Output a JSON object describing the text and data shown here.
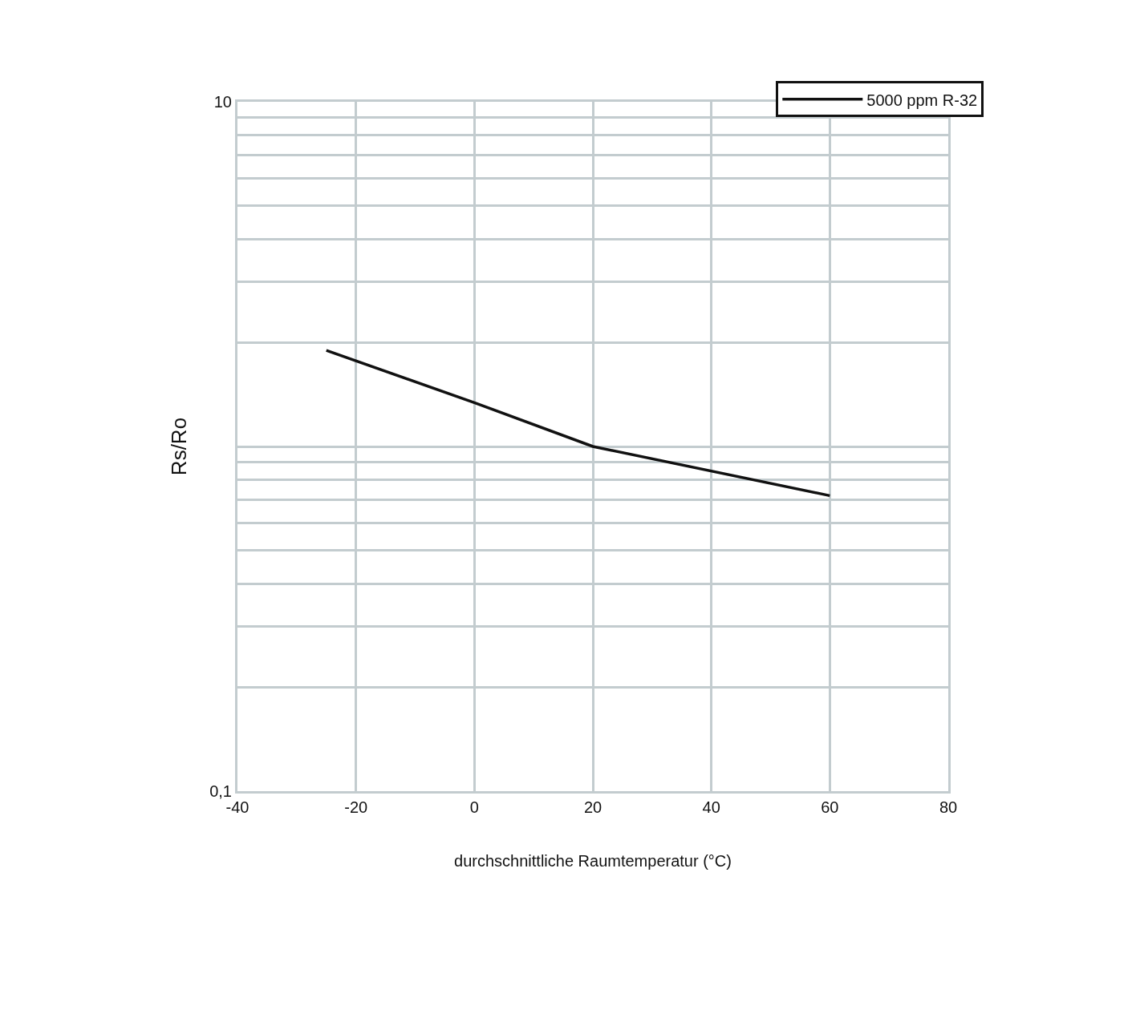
{
  "chart_data": {
    "type": "line",
    "xlabel": "durchschnittliche Raumtemperatur (°C)",
    "ylabel": "Rs/Ro",
    "x": [
      -25,
      0,
      20,
      60
    ],
    "series": [
      {
        "name": "5000 ppm R-32",
        "color": "#111111",
        "values": [
          1.9,
          1.34,
          1.0,
          0.72
        ]
      }
    ],
    "xlim": [
      -40,
      80
    ],
    "xticks": [
      -40,
      -20,
      0,
      20,
      40,
      60,
      80
    ],
    "ylim": [
      0.1,
      10
    ],
    "yticks": [
      {
        "value": 0.1,
        "label": "0,1"
      },
      {
        "value": 0.2,
        "label": null
      },
      {
        "value": 0.3,
        "label": null
      },
      {
        "value": 0.4,
        "label": null
      },
      {
        "value": 0.5,
        "label": null
      },
      {
        "value": 0.6,
        "label": null
      },
      {
        "value": 0.7,
        "label": null
      },
      {
        "value": 0.8,
        "label": null
      },
      {
        "value": 0.9,
        "label": null
      },
      {
        "value": 1,
        "label": null
      },
      {
        "value": 2,
        "label": null
      },
      {
        "value": 3,
        "label": null
      },
      {
        "value": 4,
        "label": null
      },
      {
        "value": 5,
        "label": null
      },
      {
        "value": 6,
        "label": null
      },
      {
        "value": 7,
        "label": null
      },
      {
        "value": 8,
        "label": null
      },
      {
        "value": 9,
        "label": null
      },
      {
        "value": 10,
        "label": "10"
      }
    ],
    "log": "y",
    "grid": true,
    "legend": "top right",
    "marker": "none",
    "line_style": "solid"
  }
}
